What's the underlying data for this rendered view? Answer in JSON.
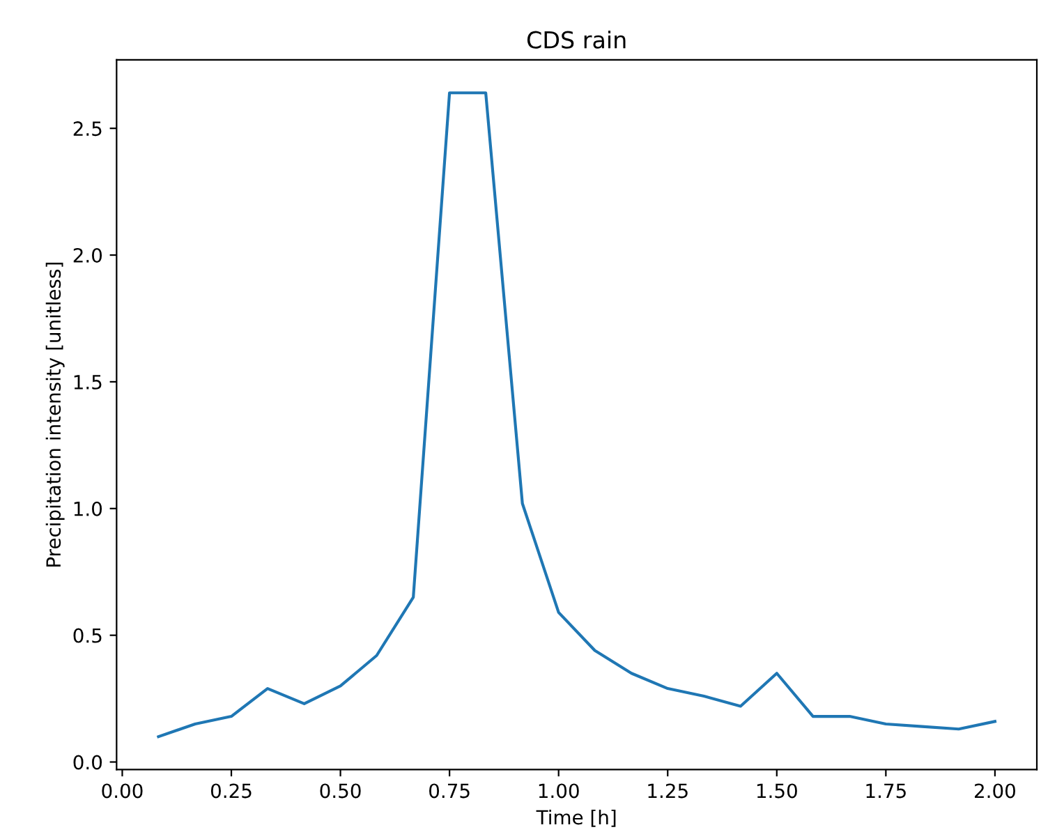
{
  "chart_data": {
    "type": "line",
    "title": "CDS rain",
    "xlabel": "Time [h]",
    "ylabel": "Precipitation intensity [unitless]",
    "x": [
      0.083,
      0.167,
      0.25,
      0.333,
      0.417,
      0.5,
      0.583,
      0.667,
      0.75,
      0.833,
      0.917,
      1.0,
      1.083,
      1.167,
      1.25,
      1.333,
      1.417,
      1.5,
      1.583,
      1.667,
      1.75,
      1.833,
      1.917,
      2.0
    ],
    "series": [
      {
        "color": "#1f77b4",
        "values": [
          0.1,
          0.15,
          0.18,
          0.29,
          0.23,
          0.3,
          0.42,
          0.65,
          2.64,
          2.64,
          1.02,
          0.59,
          0.44,
          0.35,
          0.29,
          0.26,
          0.22,
          0.35,
          0.18,
          0.18,
          0.15,
          0.14,
          0.13,
          0.16
        ]
      }
    ],
    "xlim": [
      -0.013,
      2.096
    ],
    "ylim": [
      -0.03,
      2.77
    ],
    "xticks": [
      {
        "value": 0,
        "label": "0.00"
      },
      {
        "value": 0.25,
        "label": "0.25"
      },
      {
        "value": 0.5,
        "label": "0.50"
      },
      {
        "value": 0.75,
        "label": "0.75"
      },
      {
        "value": 1,
        "label": "1.00"
      },
      {
        "value": 1.25,
        "label": "1.25"
      },
      {
        "value": 1.5,
        "label": "1.50"
      },
      {
        "value": 1.75,
        "label": "1.75"
      },
      {
        "value": 2,
        "label": "2.00"
      }
    ],
    "yticks": [
      {
        "value": 0,
        "label": "0.0"
      },
      {
        "value": 0.5,
        "label": "0.5"
      },
      {
        "value": 1,
        "label": "1.0"
      },
      {
        "value": 1.5,
        "label": "1.5"
      },
      {
        "value": 2,
        "label": "2.0"
      },
      {
        "value": 2.5,
        "label": "2.5"
      }
    ],
    "grid": false
  }
}
